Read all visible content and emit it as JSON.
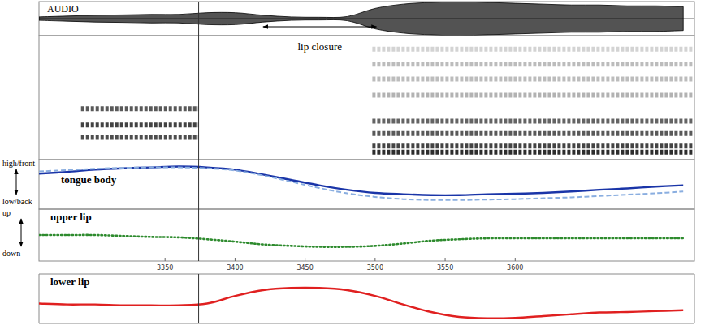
{
  "chart_data": {
    "type": "line",
    "x": [
      3260,
      3280,
      3300,
      3320,
      3340,
      3360,
      3380,
      3400,
      3420,
      3440,
      3460,
      3480,
      3500,
      3520,
      3540,
      3560,
      3580,
      3600,
      3620,
      3640,
      3660,
      3680,
      3700,
      3720
    ],
    "xlim": [
      3260,
      3728
    ],
    "xticks": [
      3350,
      3400,
      3450,
      3500,
      3550,
      3600
    ],
    "tick_labels": "x",
    "cursor": 3374,
    "audio": {
      "label": "AUDIO",
      "ylim": [
        -100,
        100
      ],
      "amplitude": [
        10,
        15,
        20,
        22,
        25,
        25,
        35,
        35,
        20,
        10,
        8,
        12,
        60,
        85,
        95,
        100,
        95,
        90,
        85,
        80,
        80,
        75,
        75,
        70
      ]
    },
    "spectrogram": {
      "ylim": [
        0,
        100
      ],
      "segments": [
        {
          "xlim": [
            3290,
            3374
          ],
          "bands": [
            41,
            28,
            18
          ],
          "intensity": [
            0.75,
            0.85,
            0.8
          ]
        },
        {
          "xlim": [
            3498,
            3728
          ],
          "bands": [
            89,
            77,
            65,
            52,
            31,
            21,
            11,
            6
          ],
          "intensity": [
            0.2,
            0.3,
            0.3,
            0.35,
            0.7,
            0.75,
            0.85,
            0.95
          ]
        }
      ]
    },
    "annotation": {
      "text": "lip closure",
      "x": [
        3420,
        3501
      ]
    },
    "panels": [
      {
        "label": "tongue body",
        "ylim": [
          0,
          100
        ],
        "axis_labels": [
          "high/front",
          "low/back"
        ],
        "series": [
          {
            "color": "#1a35a8",
            "line_style": "solid",
            "values": [
              74,
              78,
              83,
              86,
              88,
              90,
              88,
              83,
              72,
              60,
              48,
              38,
              31,
              28,
              26,
              26,
              28,
              29,
              31,
              34,
              38,
              41,
              45,
              48
            ]
          },
          {
            "color": "#8aaee0",
            "line_style": "dashed",
            "values": [
              79,
              82,
              85,
              87,
              88,
              88,
              86,
              81,
              70,
              56,
              42,
              30,
              22,
              17,
              15,
              15,
              16,
              17,
              19,
              21,
              24,
              27,
              30,
              34
            ]
          }
        ]
      },
      {
        "label": "upper lip",
        "ylim": [
          0,
          100
        ],
        "axis_labels": [
          "up",
          "down"
        ],
        "series": [
          {
            "color": "#2e8b2e",
            "line_style": "dotted",
            "values": [
              50,
              50,
              50,
              48,
              46,
              45,
              41,
              36,
              30,
              27,
              25,
              25,
              27,
              32,
              38,
              41,
              43,
              43,
              43,
              43,
              43,
              43,
              43,
              43
            ]
          }
        ]
      },
      {
        "label": "lower lip",
        "ylim": [
          0,
          100
        ],
        "series": [
          {
            "color": "#e02020",
            "line_style": "solid",
            "values": [
              39,
              37,
              37,
              35,
              35,
              35,
              39,
              56,
              69,
              74,
              74,
              69,
              56,
              37,
              20,
              9,
              6,
              7,
              11,
              15,
              19,
              20,
              22,
              24
            ]
          }
        ]
      }
    ]
  }
}
